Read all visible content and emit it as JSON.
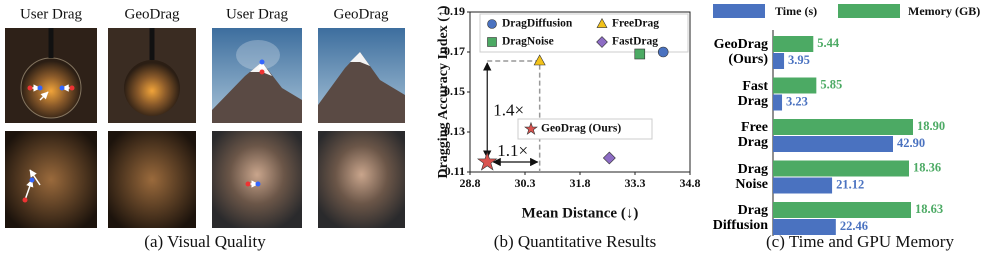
{
  "visual_quality": {
    "column_headers": [
      "User Drag",
      "GeoDrag",
      "User Drag",
      "GeoDrag"
    ],
    "caption": "(a) Visual Quality"
  },
  "chart_data": [
    {
      "type": "scatter",
      "caption": "(b) Quantitative Results",
      "x_label": "Mean Distance (↓)",
      "y_label": "Dragging Accuracy Index (↑)",
      "xlim": [
        28.8,
        34.8
      ],
      "xticks": [
        28.8,
        30.3,
        31.8,
        33.3,
        34.8
      ],
      "ylim": [
        0.11,
        0.19
      ],
      "yticks": [
        0.11,
        0.13,
        0.15,
        0.17,
        0.19
      ],
      "grid": false,
      "series": [
        {
          "name": "DragDiffusion",
          "color": "#4a72c0",
          "marker": "circle",
          "x": [
            34.07
          ],
          "values": [
            0.17
          ]
        },
        {
          "name": "FreeDrag",
          "color": "#f2c21a",
          "marker": "triangle",
          "x": [
            30.7
          ],
          "values": [
            0.1655
          ]
        },
        {
          "name": "DragNoise",
          "color": "#4caa64",
          "marker": "square",
          "x": [
            33.43
          ],
          "values": [
            0.169
          ]
        },
        {
          "name": "FastDrag",
          "color": "#8d6cc4",
          "marker": "diamond",
          "x": [
            32.6
          ],
          "values": [
            0.117
          ]
        },
        {
          "name": "GeoDrag (Ours)",
          "color": "#d9534f",
          "marker": "star",
          "x": [
            29.27
          ],
          "values": [
            0.115
          ]
        }
      ],
      "annotations": [
        {
          "text": "1.4×"
        },
        {
          "text": "1.1×"
        }
      ]
    },
    {
      "type": "hbar",
      "caption": "(c) Time and GPU Memory",
      "categories": [
        "GeoDrag (Ours)",
        "Fast Drag",
        "Free Drag",
        "Drag Noise",
        "Drag Diffusion"
      ],
      "series": [
        {
          "name": "Time (s)",
          "color": "#4a72c0",
          "values": [
            3.95,
            3.23,
            42.9,
            21.12,
            22.46
          ],
          "value_labels": [
            "3.95",
            "3.23",
            "42.90",
            "21.12",
            "22.46"
          ]
        },
        {
          "name": "Memory (GB)",
          "color": "#4caa64",
          "values": [
            5.44,
            5.85,
            18.9,
            18.36,
            18.63
          ],
          "value_labels": [
            "5.44",
            "5.85",
            "18.90",
            "18.36",
            "18.63"
          ]
        }
      ]
    }
  ]
}
